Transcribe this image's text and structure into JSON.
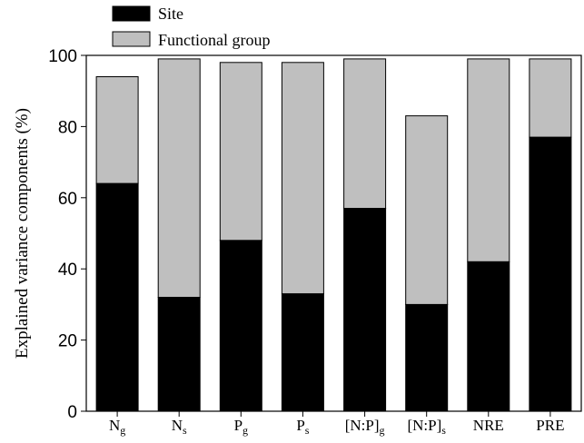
{
  "chart_data": {
    "type": "bar",
    "stacked": true,
    "ylabel": "Explained variance components (%)",
    "xlabel": "",
    "ylim": [
      0,
      100
    ],
    "yticks": [
      0,
      20,
      40,
      60,
      80,
      100
    ],
    "legend_position": "top-left",
    "categories": [
      {
        "main": "N",
        "sub": "g"
      },
      {
        "main": "N",
        "sub": "s"
      },
      {
        "main": "P",
        "sub": "g"
      },
      {
        "main": "P",
        "sub": "s"
      },
      {
        "main": "[N:P]",
        "sub": "g"
      },
      {
        "main": "[N:P]",
        "sub": "s"
      },
      {
        "main": "NRE",
        "sub": ""
      },
      {
        "main": "PRE",
        "sub": ""
      }
    ],
    "series": [
      {
        "name": "Site",
        "color": "#000000",
        "values": [
          64,
          32,
          48,
          33,
          57,
          30,
          42,
          77
        ]
      },
      {
        "name": "Functional group",
        "color": "#bfbfbf",
        "values": [
          30,
          67,
          50,
          65,
          42,
          53,
          57,
          22
        ]
      }
    ]
  }
}
